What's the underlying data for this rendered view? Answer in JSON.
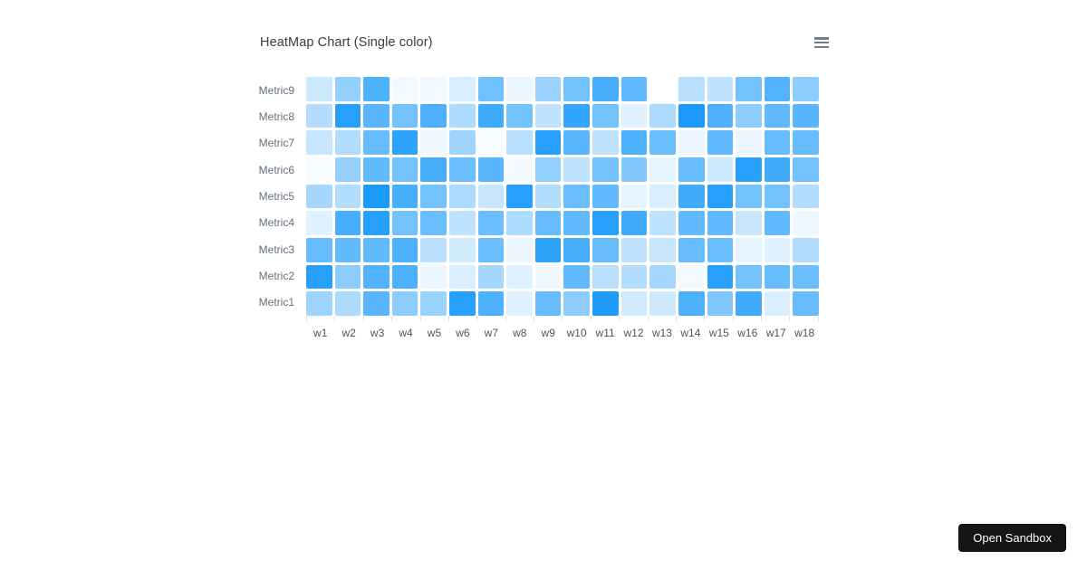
{
  "page": {
    "background": "#ffffff",
    "open_sandbox_label": "Open Sandbox",
    "open_sandbox_bg": "#151515"
  },
  "chart": {
    "title": "HeatMap Chart (Single color)",
    "title_color": "#373d3f",
    "menu_icon": "hamburger-menu-icon",
    "menu_icon_color": "#6e8192",
    "axis_label_color_y": "#62707d",
    "axis_label_color_x": "#4a5562",
    "axis_tick_color": "#e0e0e0"
  },
  "chart_data": {
    "type": "heatmap",
    "title": "HeatMap Chart (Single color)",
    "x_categories": [
      "w1",
      "w2",
      "w3",
      "w4",
      "w5",
      "w6",
      "w7",
      "w8",
      "w9",
      "w10",
      "w11",
      "w12",
      "w13",
      "w14",
      "w15",
      "w16",
      "w17",
      "w18"
    ],
    "rows_top_to_bottom": [
      {
        "name": "Metric9",
        "values": [
          20,
          42,
          70,
          5,
          5,
          15,
          56,
          8,
          40,
          55,
          72,
          62,
          0,
          28,
          25,
          55,
          68,
          45
        ]
      },
      {
        "name": "Metric8",
        "values": [
          30,
          85,
          65,
          55,
          70,
          32,
          75,
          55,
          25,
          80,
          55,
          12,
          32,
          90,
          70,
          45,
          62,
          65
        ]
      },
      {
        "name": "Metric7",
        "values": [
          22,
          30,
          60,
          82,
          6,
          38,
          3,
          28,
          85,
          65,
          25,
          70,
          58,
          8,
          62,
          7,
          60,
          60
        ]
      },
      {
        "name": "Metric6",
        "values": [
          3,
          42,
          62,
          55,
          72,
          58,
          65,
          4,
          42,
          25,
          55,
          50,
          10,
          60,
          20,
          85,
          75,
          55
        ]
      },
      {
        "name": "Metric5",
        "values": [
          35,
          30,
          90,
          72,
          55,
          32,
          22,
          85,
          30,
          58,
          62,
          10,
          15,
          75,
          85,
          55,
          55,
          30
        ]
      },
      {
        "name": "Metric4",
        "values": [
          12,
          72,
          85,
          55,
          58,
          25,
          58,
          32,
          60,
          62,
          85,
          75,
          25,
          62,
          62,
          22,
          62,
          6
        ]
      },
      {
        "name": "Metric3",
        "values": [
          60,
          62,
          62,
          70,
          28,
          18,
          58,
          8,
          82,
          72,
          60,
          25,
          22,
          60,
          58,
          10,
          12,
          30
        ]
      },
      {
        "name": "Metric2",
        "values": [
          85,
          45,
          68,
          70,
          8,
          15,
          35,
          12,
          6,
          62,
          28,
          30,
          35,
          5,
          85,
          55,
          60,
          58
        ]
      },
      {
        "name": "Metric1",
        "values": [
          38,
          32,
          65,
          45,
          40,
          85,
          70,
          12,
          60,
          45,
          88,
          18,
          20,
          70,
          50,
          75,
          15,
          60
        ]
      }
    ],
    "value_range": [
      0,
      100
    ],
    "base_color": "#008FFB",
    "zero_color": "#FFFFFF",
    "cell_stroke_color": "#FFFFFF",
    "legend": "none",
    "grid": "off",
    "xlabel": "",
    "ylabel": ""
  }
}
